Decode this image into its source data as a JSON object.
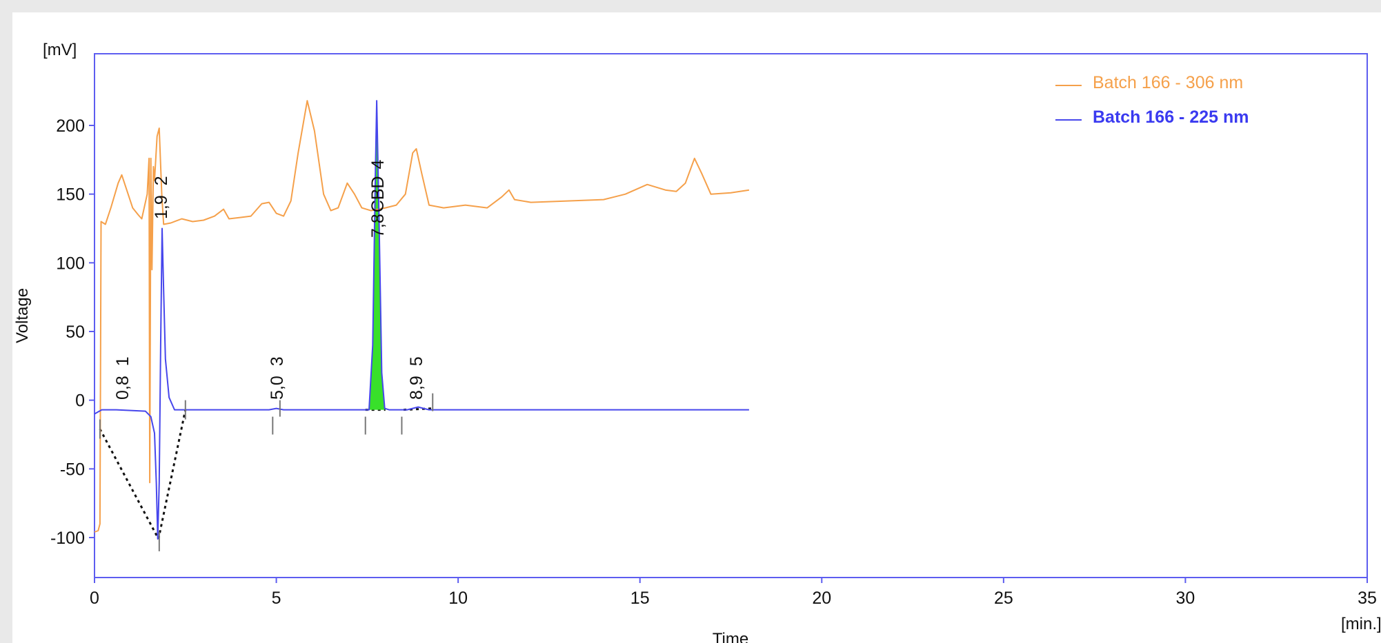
{
  "chart_data": {
    "type": "line",
    "title": "",
    "xlabel": "Time",
    "xunit": "[min.]",
    "ylabel": "Voltage",
    "yunit": "[mV]",
    "xlim": [
      0,
      35
    ],
    "ylim": [
      -130,
      250
    ],
    "xticks": [
      0,
      5,
      10,
      15,
      20,
      25,
      30,
      35
    ],
    "yticks": [
      200,
      150,
      100,
      50,
      0,
      -50,
      -100
    ],
    "ytick_labels": [
      "200",
      "150",
      "100",
      "50",
      "0",
      "-50",
      "-100"
    ],
    "grid": false,
    "legend_position": "top-right",
    "series": [
      {
        "name": "Batch 166 - 306 nm",
        "color": "#f5a04a",
        "points": [
          [
            0,
            -96
          ],
          [
            0.1,
            -95
          ],
          [
            0.15,
            -90
          ],
          [
            0.18,
            130
          ],
          [
            0.3,
            128
          ],
          [
            0.45,
            140
          ],
          [
            0.65,
            158
          ],
          [
            0.75,
            164
          ],
          [
            0.9,
            152
          ],
          [
            1.05,
            140
          ],
          [
            1.2,
            135
          ],
          [
            1.3,
            132
          ],
          [
            1.45,
            150
          ],
          [
            1.5,
            176
          ],
          [
            1.52,
            -60
          ],
          [
            1.55,
            176
          ],
          [
            1.58,
            95
          ],
          [
            1.62,
            170
          ],
          [
            1.65,
            160
          ],
          [
            1.72,
            192
          ],
          [
            1.78,
            198
          ],
          [
            1.85,
            150
          ],
          [
            1.9,
            128
          ],
          [
            2.1,
            129
          ],
          [
            2.4,
            132
          ],
          [
            2.7,
            130
          ],
          [
            3.0,
            131
          ],
          [
            3.3,
            134
          ],
          [
            3.55,
            139
          ],
          [
            3.7,
            132
          ],
          [
            4.0,
            133
          ],
          [
            4.3,
            134
          ],
          [
            4.6,
            143
          ],
          [
            4.8,
            144
          ],
          [
            5.0,
            136
          ],
          [
            5.2,
            134
          ],
          [
            5.4,
            145
          ],
          [
            5.6,
            180
          ],
          [
            5.85,
            218
          ],
          [
            6.05,
            196
          ],
          [
            6.3,
            150
          ],
          [
            6.5,
            138
          ],
          [
            6.7,
            140
          ],
          [
            6.95,
            158
          ],
          [
            7.15,
            150
          ],
          [
            7.35,
            140
          ],
          [
            7.6,
            138
          ],
          [
            8.0,
            140
          ],
          [
            8.3,
            142
          ],
          [
            8.55,
            150
          ],
          [
            8.75,
            180
          ],
          [
            8.85,
            183
          ],
          [
            9.0,
            165
          ],
          [
            9.2,
            142
          ],
          [
            9.6,
            140
          ],
          [
            10.2,
            142
          ],
          [
            10.8,
            140
          ],
          [
            11.2,
            148
          ],
          [
            11.4,
            153
          ],
          [
            11.55,
            146
          ],
          [
            12.0,
            144
          ],
          [
            13.0,
            145
          ],
          [
            14.0,
            146
          ],
          [
            14.6,
            150
          ],
          [
            15.2,
            157
          ],
          [
            15.7,
            153
          ],
          [
            16.0,
            152
          ],
          [
            16.25,
            158
          ],
          [
            16.5,
            176
          ],
          [
            16.7,
            165
          ],
          [
            16.95,
            150
          ],
          [
            17.5,
            151
          ],
          [
            18.0,
            153
          ]
        ]
      },
      {
        "name": "Batch 166 - 225 nm",
        "color": "#4646ec",
        "points": [
          [
            0,
            -10
          ],
          [
            0.2,
            -7
          ],
          [
            0.6,
            -7
          ],
          [
            1.0,
            -7.5
          ],
          [
            1.4,
            -8
          ],
          [
            1.55,
            -12
          ],
          [
            1.65,
            -24
          ],
          [
            1.7,
            -60
          ],
          [
            1.74,
            -101
          ],
          [
            1.78,
            -60
          ],
          [
            1.82,
            40
          ],
          [
            1.86,
            125
          ],
          [
            1.9,
            80
          ],
          [
            1.95,
            30
          ],
          [
            2.05,
            2
          ],
          [
            2.2,
            -7
          ],
          [
            2.5,
            -7
          ],
          [
            3.0,
            -7
          ],
          [
            4.0,
            -7
          ],
          [
            4.8,
            -7
          ],
          [
            5.0,
            -6
          ],
          [
            5.2,
            -7
          ],
          [
            6.0,
            -7
          ],
          [
            7.0,
            -7
          ],
          [
            7.55,
            -7
          ],
          [
            7.65,
            40
          ],
          [
            7.72,
            160
          ],
          [
            7.76,
            218
          ],
          [
            7.82,
            140
          ],
          [
            7.9,
            20
          ],
          [
            7.98,
            -6
          ],
          [
            8.1,
            -7
          ],
          [
            8.6,
            -7
          ],
          [
            8.9,
            -5
          ],
          [
            9.2,
            -7
          ],
          [
            10.0,
            -7
          ],
          [
            12.0,
            -7
          ],
          [
            14.0,
            -7
          ],
          [
            16.0,
            -7
          ],
          [
            18.0,
            -7
          ]
        ]
      }
    ],
    "peaks": [
      {
        "time": "0,8",
        "number": "1"
      },
      {
        "time": "1,9",
        "number": "2"
      },
      {
        "time": "5,0",
        "number": "3"
      },
      {
        "time": "7,8",
        "number": "CBD",
        "extra": "4"
      },
      {
        "time": "8,9",
        "number": "5"
      }
    ]
  }
}
